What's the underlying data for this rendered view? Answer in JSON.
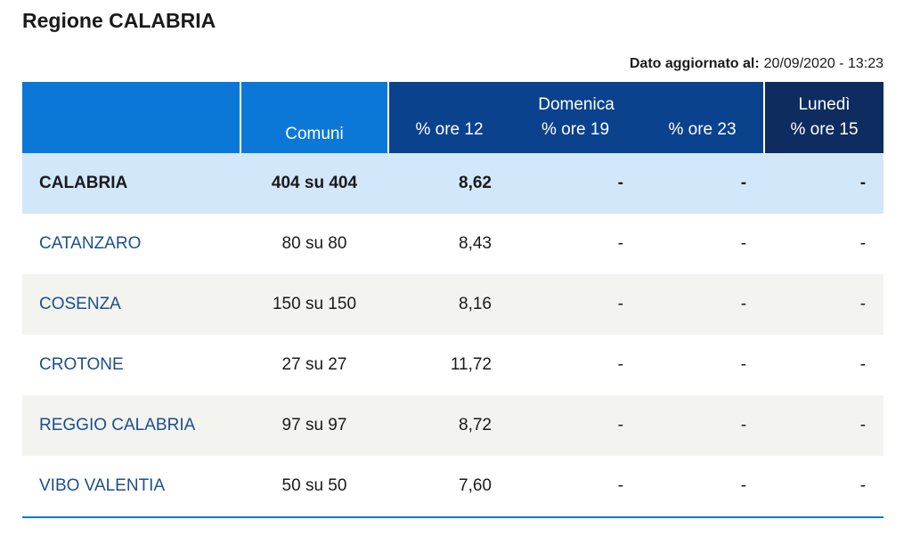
{
  "header": {
    "title": "Regione CALABRIA",
    "updated_label": "Dato aggiornato al:",
    "updated_value": "20/09/2020 - 13:23"
  },
  "table": {
    "group_headers": [
      "Domenica",
      "Lunedì"
    ],
    "columns": [
      "Comuni",
      "% ore 12",
      "% ore 19",
      "% ore 23",
      "% ore 15"
    ],
    "rows": [
      [
        "CALABRIA",
        "404 su 404",
        "8,62",
        "-",
        "-",
        "-"
      ],
      [
        "CATANZARO",
        "80 su 80",
        "8,43",
        "-",
        "-",
        "-"
      ],
      [
        "COSENZA",
        "150 su 150",
        "8,16",
        "-",
        "-",
        "-"
      ],
      [
        "CROTONE",
        "27 su 27",
        "11,72",
        "-",
        "-",
        "-"
      ],
      [
        "REGGIO CALABRIA",
        "97 su 97",
        "8,72",
        "-",
        "-",
        "-"
      ],
      [
        "VIBO VALENTIA",
        "50 su 50",
        "7,60",
        "-",
        "-",
        "-"
      ]
    ]
  }
}
